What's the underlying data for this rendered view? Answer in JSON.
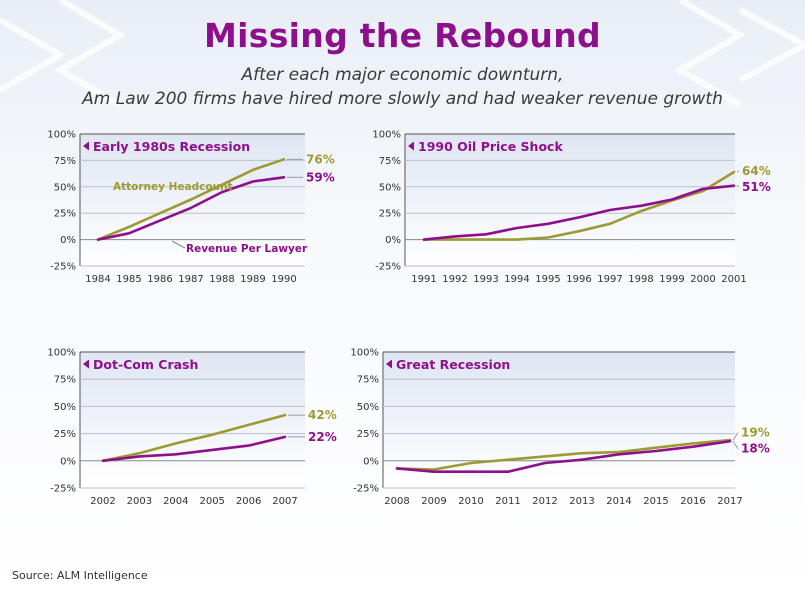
{
  "title": "Missing the Rebound",
  "subtitle_line1": "After each major economic downturn,",
  "subtitle_line2": "Am Law 200 firms have hired more slowly and had weaker revenue growth",
  "source": "Source: ALM Intelligence",
  "colors": {
    "title": "#8e0f8c",
    "headcount": "#9e9a33",
    "revenue": "#8e0f8c",
    "panel_top": "#dfe6f2",
    "panel_bottom": "#ffffff"
  },
  "chart_data": [
    {
      "type": "line",
      "title": "Early 1980s Recession",
      "x": [
        "1984",
        "1985",
        "1986",
        "1987",
        "1988",
        "1989",
        "1990"
      ],
      "ylim": [
        -25,
        100
      ],
      "yticks": [
        "100%",
        "75%",
        "50%",
        "25%",
        "0%",
        "-25%"
      ],
      "series": [
        {
          "name": "Attorney Headcount",
          "values": [
            0,
            12,
            25,
            38,
            52,
            66,
            76
          ],
          "end_label": "76%"
        },
        {
          "name": "Revenue Per Lawyer",
          "values": [
            0,
            6,
            18,
            30,
            45,
            55,
            59
          ],
          "end_label": "59%"
        }
      ],
      "annotations": [
        "Attorney Headcount",
        "Revenue Per Lawyer"
      ]
    },
    {
      "type": "line",
      "title": "1990 Oil Price Shock",
      "x": [
        "1991",
        "1992",
        "1993",
        "1994",
        "1995",
        "1996",
        "1997",
        "1998",
        "1999",
        "2000",
        "2001"
      ],
      "ylim": [
        -25,
        100
      ],
      "yticks": [
        "100%",
        "75%",
        "50%",
        "25%",
        "0%",
        "-25%"
      ],
      "series": [
        {
          "name": "Attorney Headcount",
          "values": [
            0,
            0,
            0,
            0,
            2,
            8,
            15,
            27,
            37,
            46,
            64
          ],
          "end_label": "64%"
        },
        {
          "name": "Revenue Per Lawyer",
          "values": [
            0,
            3,
            5,
            11,
            15,
            21,
            28,
            32,
            38,
            48,
            51
          ],
          "end_label": "51%"
        }
      ]
    },
    {
      "type": "line",
      "title": "Dot-Com Crash",
      "x": [
        "2002",
        "2003",
        "2004",
        "2005",
        "2006",
        "2007"
      ],
      "ylim": [
        -25,
        100
      ],
      "yticks": [
        "100%",
        "75%",
        "50%",
        "25%",
        "0%",
        "-25%"
      ],
      "series": [
        {
          "name": "Attorney Headcount",
          "values": [
            0,
            7,
            16,
            24,
            33,
            42
          ],
          "end_label": "42%"
        },
        {
          "name": "Revenue Per Lawyer",
          "values": [
            0,
            4,
            6,
            10,
            14,
            22
          ],
          "end_label": "22%"
        }
      ]
    },
    {
      "type": "line",
      "title": "Great Recession",
      "x": [
        "2008",
        "2009",
        "2010",
        "2011",
        "2012",
        "2013",
        "2014",
        "2015",
        "2016",
        "2017"
      ],
      "ylim": [
        -25,
        100
      ],
      "yticks": [
        "100%",
        "75%",
        "50%",
        "25%",
        "0%",
        "-25%"
      ],
      "series": [
        {
          "name": "Attorney Headcount",
          "values": [
            -7,
            -8,
            -2,
            1,
            4,
            7,
            8,
            12,
            16,
            19
          ],
          "end_label": "19%"
        },
        {
          "name": "Revenue Per Lawyer",
          "values": [
            -7,
            -10,
            -10,
            -10,
            -2,
            1,
            6,
            9,
            13,
            18
          ],
          "end_label": "18%"
        }
      ]
    }
  ]
}
